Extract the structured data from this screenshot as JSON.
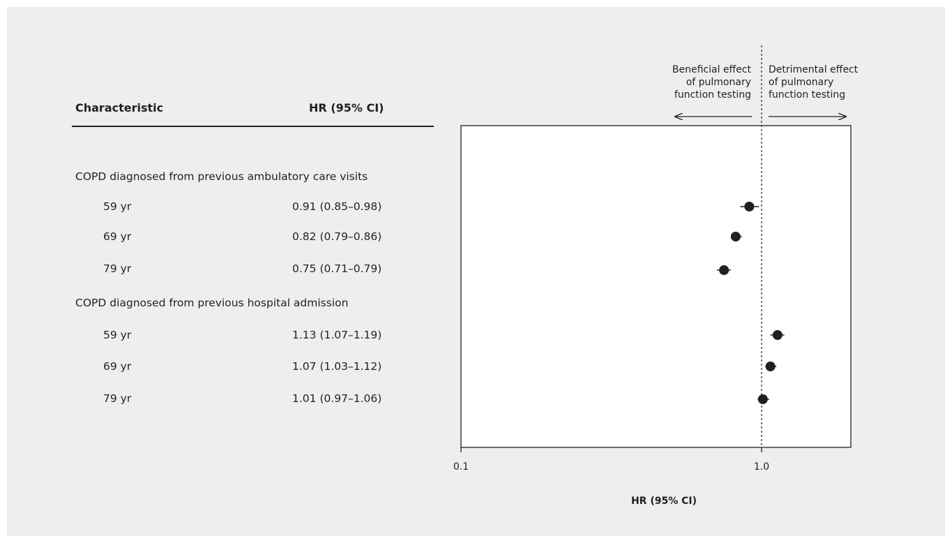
{
  "table": {
    "col_characteristic": "Characteristic",
    "col_hr": "HR (95% CI)",
    "groups": [
      {
        "label": "COPD diagnosed from previous ambulatory care visits",
        "rows": [
          {
            "age": "59 yr",
            "hr_text": "0.91 (0.85–0.98)"
          },
          {
            "age": "69 yr",
            "hr_text": "0.82 (0.79–0.86)"
          },
          {
            "age": "79 yr",
            "hr_text": "0.75 (0.71–0.79)"
          }
        ]
      },
      {
        "label": "COPD diagnosed from previous hospital admission",
        "rows": [
          {
            "age": "59 yr",
            "hr_text": "1.13 (1.07–1.19)"
          },
          {
            "age": "69 yr",
            "hr_text": "1.07 (1.03–1.12)"
          },
          {
            "age": "79 yr",
            "hr_text": "1.01 (0.97–1.06)"
          }
        ]
      }
    ]
  },
  "annotations": {
    "left": [
      "Beneficial effect",
      "of pulmonary",
      "function testing"
    ],
    "right": [
      "Detrimental effect",
      "of pulmonary",
      "function testing"
    ]
  },
  "chart_data": {
    "type": "scatter",
    "subtype": "forest-plot",
    "xscale": "log",
    "xlim": [
      0.1,
      2.0
    ],
    "xticks": [
      0.1,
      1.0
    ],
    "xtick_labels": [
      "0.1",
      "1.0"
    ],
    "xlabel": "HR (95% CI)",
    "reference_line": 1.0,
    "points": [
      {
        "estimate": 0.91,
        "lower": 0.85,
        "upper": 0.98
      },
      {
        "estimate": 0.82,
        "lower": 0.79,
        "upper": 0.86
      },
      {
        "estimate": 0.75,
        "lower": 0.71,
        "upper": 0.79
      },
      {
        "estimate": 1.13,
        "lower": 1.07,
        "upper": 1.19
      },
      {
        "estimate": 1.07,
        "lower": 1.03,
        "upper": 1.12
      },
      {
        "estimate": 1.01,
        "lower": 0.97,
        "upper": 1.06
      }
    ],
    "marker_color": "#231f20"
  }
}
